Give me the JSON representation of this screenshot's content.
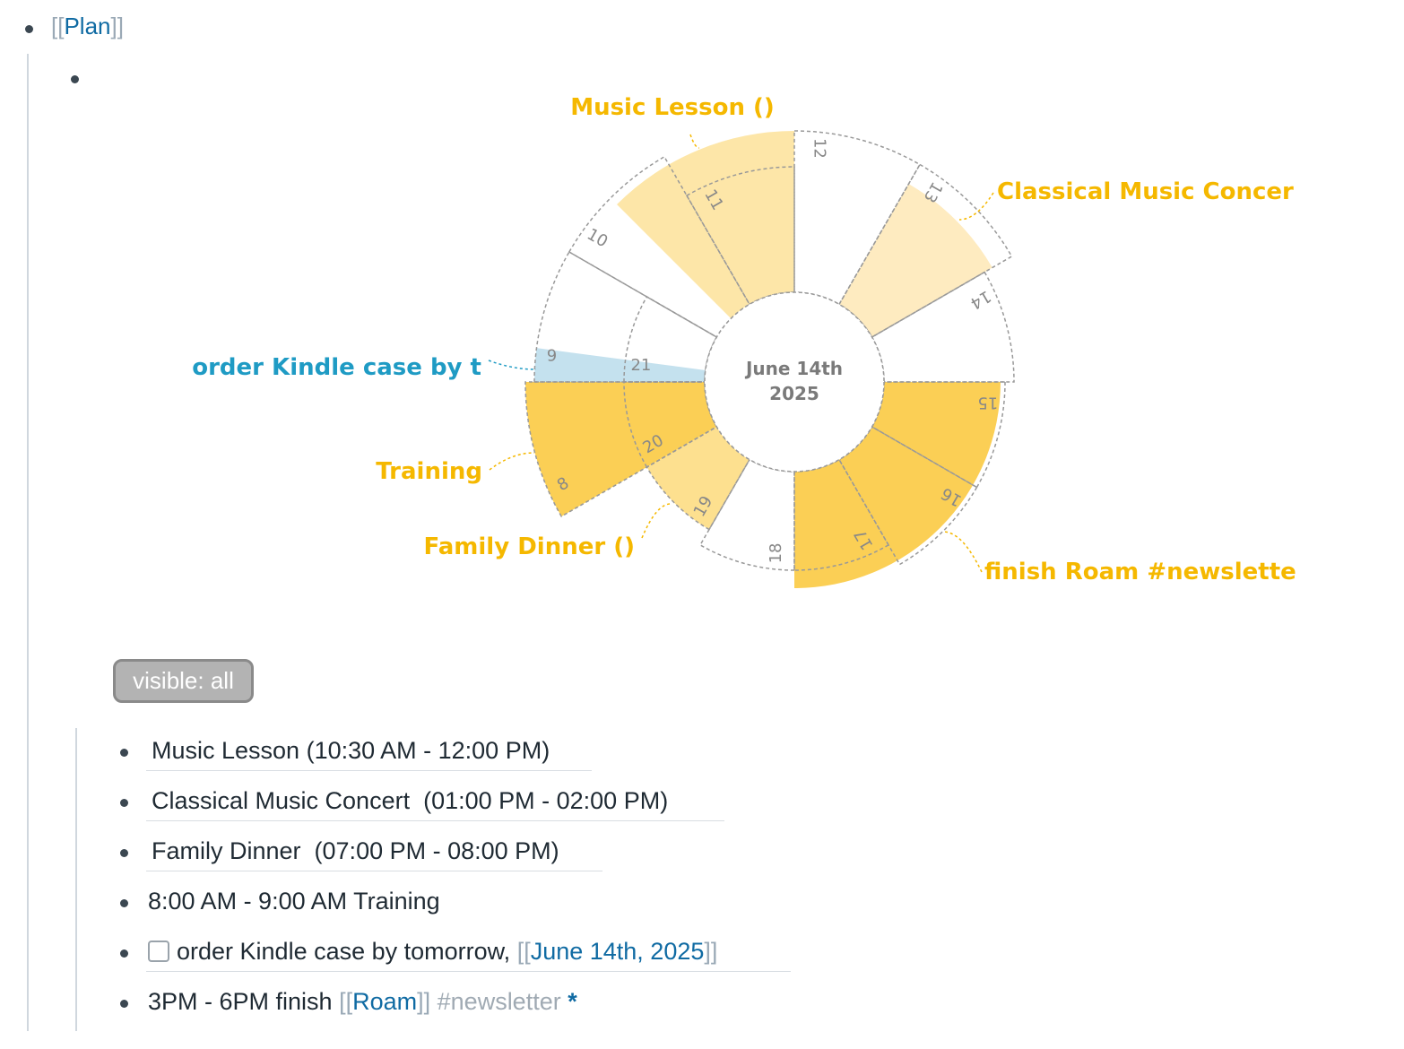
{
  "header": {
    "open_bracket": "[[",
    "page_title": "Plan",
    "close_bracket": "]]"
  },
  "chart_data": {
    "type": "radial-schedule",
    "center_label": {
      "line1": "June 14th",
      "line2": "2025"
    },
    "hour_labels": [
      "8",
      "9",
      "10",
      "11",
      "12",
      "13",
      "14",
      "15",
      "16",
      "17",
      "18",
      "19",
      "20",
      "21"
    ],
    "events": [
      {
        "label": "Music Lesson ()",
        "start_hour": 10.5,
        "end_hour": 12,
        "color": "#fde6a8"
      },
      {
        "label": "Classical Music Concer",
        "start_hour": 13,
        "end_hour": 14,
        "color": "#feebc0"
      },
      {
        "label": "order Kindle case by t",
        "start_hour": 9,
        "end_hour": 9.25,
        "color": "#c4e1ee"
      },
      {
        "label": "Training",
        "start_hour": 8,
        "end_hour": 9,
        "color": "#fbcf55"
      },
      {
        "label": "Family Dinner ()",
        "start_hour": 19,
        "end_hour": 20,
        "color": "#fde08f"
      },
      {
        "label": "finish Roam #newslette",
        "start_hour": 15,
        "end_hour": 18,
        "color": "#fbcf55"
      }
    ],
    "colors": {
      "yellow_label": "#f5b800",
      "blue_label": "#1f9bc4",
      "center_text": "#7a7a7a"
    }
  },
  "filter_button": {
    "label": "visible: all"
  },
  "items": [
    {
      "text": "Music Lesson (10:30 AM - 12:00 PM)"
    },
    {
      "text": "Classical Music Concert  (01:00 PM - 02:00 PM)"
    },
    {
      "text": "Family Dinner  (07:00 PM - 08:00 PM)"
    },
    {
      "text": "8:00 AM - 9:00 AM Training"
    },
    {
      "text": "order Kindle case by tomorrow, ",
      "link_open": "[[",
      "link": "June 14th, 2025",
      "link_close": "]]"
    },
    {
      "text": "3PM - 6PM finish ",
      "link_open": "[[",
      "link": "Roam",
      "link_close": "]]",
      "tag": "#newsletter",
      "star": "*"
    }
  ]
}
